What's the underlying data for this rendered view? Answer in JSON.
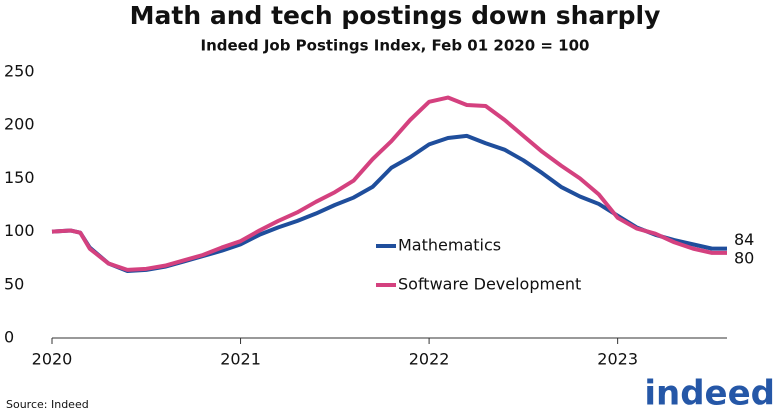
{
  "chart_data": {
    "type": "line",
    "title": "Math and tech postings down sharply",
    "subtitle": "Indeed Job Postings Index, Feb 01 2020 = 100",
    "source": "Source: Indeed",
    "logo": "indeed",
    "x": [
      2020.0,
      2020.1,
      2020.15,
      2020.2,
      2020.3,
      2020.4,
      2020.5,
      2020.6,
      2020.7,
      2020.8,
      2020.9,
      2021.0,
      2021.1,
      2021.2,
      2021.3,
      2021.4,
      2021.5,
      2021.6,
      2021.7,
      2021.8,
      2021.9,
      2022.0,
      2022.1,
      2022.2,
      2022.3,
      2022.4,
      2022.5,
      2022.6,
      2022.7,
      2022.8,
      2022.9,
      2023.0,
      2023.1,
      2023.2,
      2023.3,
      2023.4,
      2023.5,
      2023.58
    ],
    "series": [
      {
        "name": "Mathematics",
        "color": "#1f4e9c",
        "values": [
          100,
          101,
          99,
          85,
          70,
          63,
          64,
          67,
          72,
          77,
          82,
          88,
          97,
          104,
          110,
          117,
          125,
          132,
          142,
          160,
          170,
          182,
          188,
          190,
          183,
          177,
          167,
          155,
          142,
          133,
          126,
          115,
          104,
          97,
          92,
          88,
          84,
          84
        ]
      },
      {
        "name": "Software Development",
        "color": "#d4417f",
        "values": [
          100,
          101,
          99,
          84,
          70,
          64,
          65,
          68,
          73,
          78,
          85,
          91,
          101,
          110,
          118,
          128,
          137,
          148,
          168,
          185,
          205,
          222,
          226,
          219,
          218,
          205,
          190,
          175,
          162,
          150,
          135,
          113,
          103,
          98,
          90,
          84,
          80,
          80
        ]
      }
    ],
    "xlim": [
      2020,
      2023.58
    ],
    "xticks": [
      2020,
      2021,
      2022,
      2023
    ],
    "ylim": [
      0,
      250
    ],
    "yticks": [
      0,
      50,
      100,
      150,
      200,
      250
    ],
    "grid": false
  }
}
